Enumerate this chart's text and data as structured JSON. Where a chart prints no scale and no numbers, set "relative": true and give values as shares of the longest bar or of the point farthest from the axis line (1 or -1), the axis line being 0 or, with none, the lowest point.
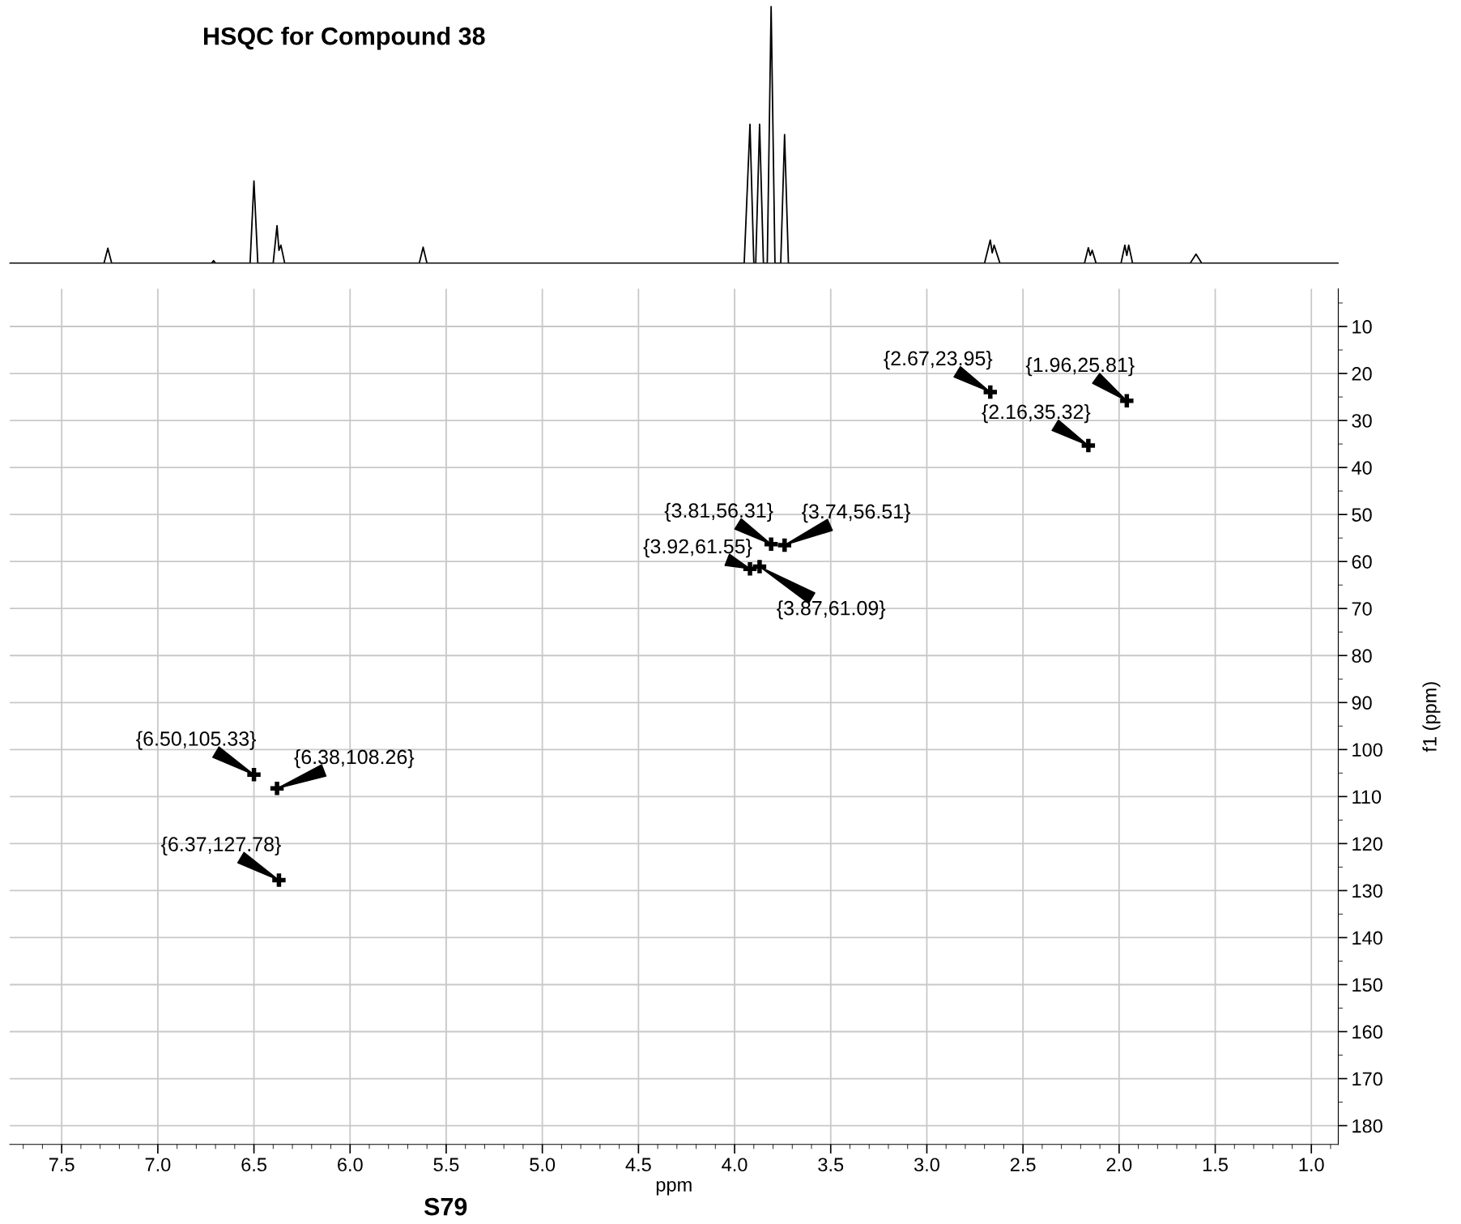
{
  "chart_data": [
    {
      "type": "line",
      "title": "HSQC for Compound 38",
      "relative": true,
      "xlim": [
        7.77,
        0.86
      ],
      "tick_labels": false,
      "grid": false,
      "legend": false,
      "marker": "none",
      "line_style": "solid",
      "series": [
        {
          "color": "#000000",
          "x": [
            7.77,
            7.28,
            7.26,
            7.24,
            6.72,
            6.71,
            6.7,
            6.52,
            6.5,
            6.48,
            6.4,
            6.38,
            6.37,
            6.36,
            6.34,
            5.64,
            5.62,
            5.6,
            3.95,
            3.92,
            3.9,
            3.89,
            3.87,
            3.85,
            3.83,
            3.81,
            3.79,
            3.76,
            3.74,
            3.72,
            2.7,
            2.67,
            2.66,
            2.65,
            2.62,
            2.18,
            2.16,
            2.15,
            2.14,
            2.12,
            1.99,
            1.97,
            1.96,
            1.95,
            1.93,
            1.63,
            1.6,
            1.57,
            0.86
          ],
          "values": [
            0,
            0,
            0.058,
            0,
            0,
            0.01,
            0,
            0,
            0.32,
            0,
            0,
            0.146,
            0.05,
            0.07,
            0,
            0,
            0.062,
            0,
            0,
            0.54,
            0,
            0,
            0.54,
            0,
            0,
            1,
            0,
            0,
            0.5,
            0,
            0,
            0.09,
            0.04,
            0.07,
            0,
            0,
            0.06,
            0.03,
            0.05,
            0,
            0,
            0.07,
            0.03,
            0.07,
            0,
            0,
            0.035,
            0,
            0
          ]
        }
      ]
    },
    {
      "type": "scatter",
      "xlabel": "ppm",
      "ylabel": "f1 (ppm)",
      "xlim": [
        7.77,
        0.86
      ],
      "ylim": [
        184,
        2
      ],
      "xticks": [
        7.5,
        {
          "value": 7,
          "label": "7.0"
        },
        6.5,
        {
          "value": 6,
          "label": "6.0"
        },
        5.5,
        {
          "value": 5,
          "label": "5.0"
        },
        4.5,
        {
          "value": 4,
          "label": "4.0"
        },
        3.5,
        {
          "value": 3,
          "label": "3.0"
        },
        2.5,
        {
          "value": 2,
          "label": "2.0"
        },
        1.5,
        {
          "value": 1,
          "label": "1.0"
        }
      ],
      "yticks": [
        10,
        20,
        30,
        40,
        50,
        60,
        70,
        80,
        90,
        100,
        110,
        120,
        130,
        140,
        150,
        160,
        170,
        180
      ],
      "grid": true,
      "legend": false,
      "marker": "cross",
      "series": [
        {
          "color": "#000000",
          "x": [
            2.67,
            1.96,
            2.16,
            3.81,
            3.74,
            3.92,
            3.87,
            6.5,
            6.38,
            6.37
          ],
          "values": [
            23.95,
            25.81,
            35.32,
            56.31,
            56.51,
            61.55,
            61.09,
            105.33,
            108.26,
            127.78
          ]
        }
      ],
      "annotations": [
        {
          "text": "{2.67,23.95}",
          "x": 2.67,
          "y": 23.95
        },
        {
          "text": "{1.96,25.81}",
          "x": 1.96,
          "y": 25.81
        },
        {
          "text": "{2.16,35.32}",
          "x": 2.16,
          "y": 35.32
        },
        {
          "text": "{3.81,56.31}",
          "x": 3.81,
          "y": 56.31
        },
        {
          "text": "{3.74,56.51}",
          "x": 3.74,
          "y": 56.51
        },
        {
          "text": "{3.92,61.55}",
          "x": 3.92,
          "y": 61.55
        },
        {
          "text": "{3.87,61.09}",
          "x": 3.87,
          "y": 61.09
        },
        {
          "text": "{6.50,105.33}",
          "x": 6.5,
          "y": 105.33
        },
        {
          "text": "{6.38,108.26}",
          "x": 6.38,
          "y": 108.26
        },
        {
          "text": "{6.37,127.78}",
          "x": 6.37,
          "y": 127.78
        },
        "S79"
      ]
    }
  ]
}
